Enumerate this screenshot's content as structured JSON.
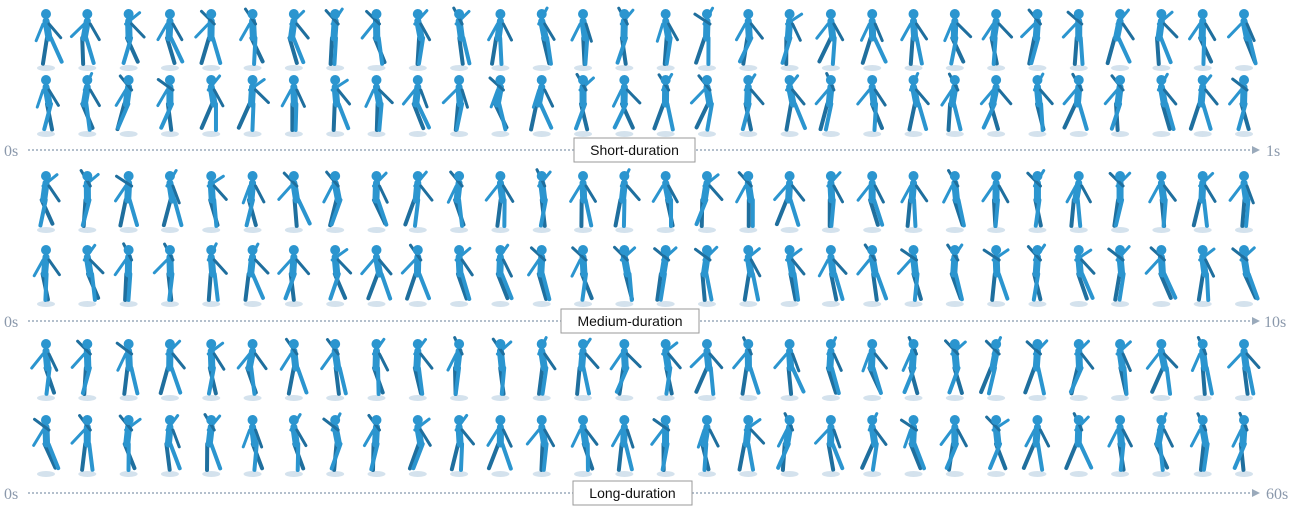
{
  "figure": {
    "frames_per_row": 30,
    "colors": {
      "figure_body": "#2b95cf",
      "figure_shadow": "#1f6f9e",
      "reflection": "#c9dbe8",
      "timeline": "#9aaabb",
      "label": "#8a98ab"
    },
    "sections": [
      {
        "title": "Short-duration",
        "start_label": "0s",
        "end_label": "1s",
        "rows": 2
      },
      {
        "title": "Medium-duration",
        "start_label": "0s",
        "end_label": "10s",
        "rows": 2
      },
      {
        "title": "Long-duration",
        "start_label": "0s",
        "end_label": "60s",
        "rows": 2
      }
    ]
  }
}
